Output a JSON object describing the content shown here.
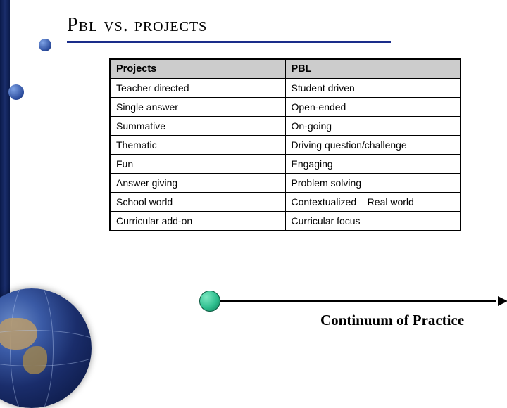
{
  "colors": {
    "slide_bg": "#ffffff",
    "title_underline": "#1a2d8a",
    "sidebar_gradient": [
      "#0a1a4a",
      "#1a2d6b",
      "#0a1a4a"
    ],
    "table_border": "#000000",
    "table_header_bg": "#cccccc",
    "continuum_line": "#000000",
    "continuum_marker": "#2fbf8f"
  },
  "title": "Pbl vs. projects",
  "comparison_table": {
    "type": "table",
    "columns": [
      "Projects",
      "PBL"
    ],
    "rows": [
      [
        "Teacher directed",
        "Student driven"
      ],
      [
        "Single answer",
        "Open-ended"
      ],
      [
        "Summative",
        "On-going"
      ],
      [
        "Thematic",
        "Driving question/challenge"
      ],
      [
        "Fun",
        "Engaging"
      ],
      [
        "Answer giving",
        "Problem solving"
      ],
      [
        "School world",
        "Contextualized – Real world"
      ],
      [
        "Curricular add-on",
        "Curricular focus"
      ]
    ],
    "header_fontsize": 14.5,
    "cell_fontsize": 14,
    "col_widths_pct": [
      50,
      50
    ]
  },
  "continuum": {
    "label": "Continuum of Practice",
    "label_fontsize": 21,
    "marker_position": 0.0,
    "arrows": "both"
  }
}
